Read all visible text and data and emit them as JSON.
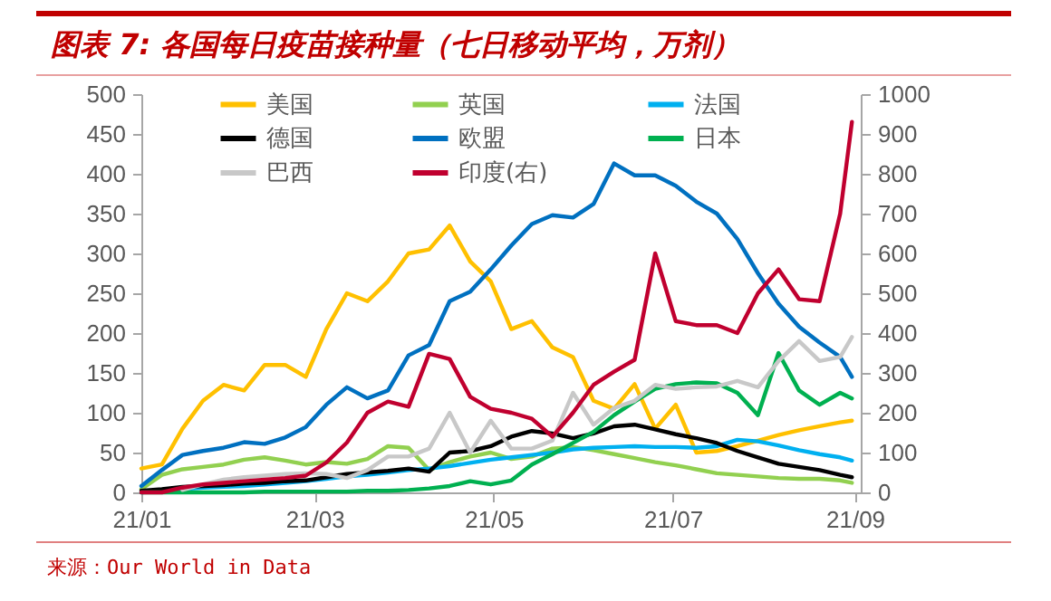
{
  "chart_data": {
    "type": "line",
    "title": "图表 7: 各国每日疫苗接种量（七日移动平均，万剂）",
    "annotations": [
      "来源：Our World in Data"
    ],
    "x": [
      "--01-01",
      "--01-08",
      "--01-15",
      "--01-22",
      "--01-29",
      "--02-05",
      "--02-12",
      "--02-19",
      "--02-26",
      "--03-05",
      "--03-12",
      "--03-19",
      "--03-26",
      "--04-02",
      "--04-09",
      "--04-16",
      "--04-23",
      "--04-30",
      "--05-07",
      "--05-14",
      "--05-21",
      "--05-28",
      "--06-04",
      "--06-11",
      "--06-18",
      "--06-25",
      "--07-02",
      "--07-09",
      "--07-16",
      "--07-23",
      "--07-30",
      "--08-06",
      "--08-13",
      "--08-20",
      "--08-27",
      "--08-31"
    ],
    "xlim": [
      "--01-01",
      "--09-03"
    ],
    "xticks": [
      {
        "value": "--01-01",
        "label": "21/01"
      },
      {
        "value": "--03-01",
        "label": "21/03"
      },
      {
        "value": "--05-01",
        "label": "21/05"
      },
      {
        "value": "--07-01",
        "label": "21/07"
      },
      {
        "value": "--09-01",
        "label": "21/09"
      }
    ],
    "ylim": [
      0,
      500
    ],
    "yticks": [
      0,
      50,
      100,
      150,
      200,
      250,
      300,
      350,
      400,
      450,
      500
    ],
    "y2lim": [
      0,
      1000
    ],
    "y2ticks": [
      0,
      100,
      200,
      300,
      400,
      500,
      600,
      700,
      800,
      900,
      1000
    ],
    "legend": "top",
    "grid": false,
    "series": [
      {
        "name": "美国",
        "color": "#ffc000",
        "values": [
          30,
          35,
          80,
          115,
          135,
          128,
          160,
          160,
          145,
          205,
          250,
          240,
          265,
          300,
          305,
          335,
          290,
          265,
          205,
          215,
          182,
          170,
          115,
          105,
          136,
          80,
          110,
          50,
          52,
          58,
          65,
          72,
          78,
          83,
          88,
          90
        ]
      },
      {
        "name": "英国",
        "color": "#92d050",
        "values": [
          4,
          22,
          29,
          32,
          35,
          41,
          44,
          40,
          35,
          38,
          36,
          42,
          58,
          56,
          28,
          38,
          45,
          50,
          42,
          45,
          55,
          57,
          53,
          48,
          43,
          38,
          34,
          29,
          24,
          22,
          20,
          18,
          17,
          17,
          15,
          12
        ]
      },
      {
        "name": "法国",
        "color": "#00b0f0",
        "values": [
          0,
          2,
          4,
          6,
          7,
          8,
          10,
          12,
          14,
          17,
          20,
          22,
          25,
          28,
          30,
          33,
          37,
          41,
          44,
          47,
          50,
          54,
          56,
          57,
          58,
          57,
          57,
          56,
          58,
          66,
          64,
          59,
          53,
          48,
          44,
          40
        ]
      },
      {
        "name": "德国",
        "color": "#000000",
        "values": [
          2,
          4,
          7,
          8,
          9,
          11,
          12,
          14,
          15,
          19,
          23,
          25,
          27,
          30,
          26,
          50,
          52,
          58,
          70,
          77,
          74,
          68,
          74,
          83,
          85,
          79,
          73,
          68,
          62,
          52,
          44,
          36,
          32,
          28,
          22,
          19
        ]
      },
      {
        "name": "欧盟",
        "color": "#0070c0",
        "values": [
          8,
          28,
          47,
          52,
          56,
          63,
          61,
          69,
          82,
          110,
          132,
          118,
          128,
          172,
          185,
          240,
          252,
          280,
          310,
          337,
          348,
          345,
          362,
          413,
          398,
          398,
          385,
          365,
          350,
          318,
          275,
          237,
          208,
          188,
          170,
          145
        ]
      },
      {
        "name": "日本",
        "color": "#00b050",
        "values": [
          0,
          0,
          0,
          0,
          0,
          0,
          1,
          1,
          1,
          1,
          1,
          2,
          2,
          3,
          5,
          8,
          14,
          10,
          15,
          35,
          48,
          62,
          76,
          97,
          114,
          130,
          136,
          138,
          137,
          125,
          97,
          175,
          128,
          110,
          125,
          118
        ]
      },
      {
        "name": "巴西",
        "color": "#c8c8c8",
        "values": [
          null,
          null,
          3,
          10,
          16,
          19,
          21,
          23,
          24,
          23,
          18,
          28,
          45,
          45,
          55,
          100,
          50,
          90,
          55,
          55,
          65,
          125,
          85,
          106,
          115,
          135,
          130,
          132,
          133,
          140,
          132,
          165,
          190,
          165,
          170,
          195
        ]
      },
      {
        "name": "印度(右)",
        "color": "#c0002f",
        "axis": "y2",
        "values": [
          0,
          0,
          12,
          20,
          24,
          28,
          32,
          36,
          42,
          75,
          125,
          200,
          228,
          215,
          348,
          335,
          240,
          210,
          200,
          185,
          140,
          200,
          270,
          303,
          333,
          600,
          430,
          420,
          420,
          400,
          500,
          560,
          485,
          480,
          700,
          930
        ]
      }
    ]
  }
}
